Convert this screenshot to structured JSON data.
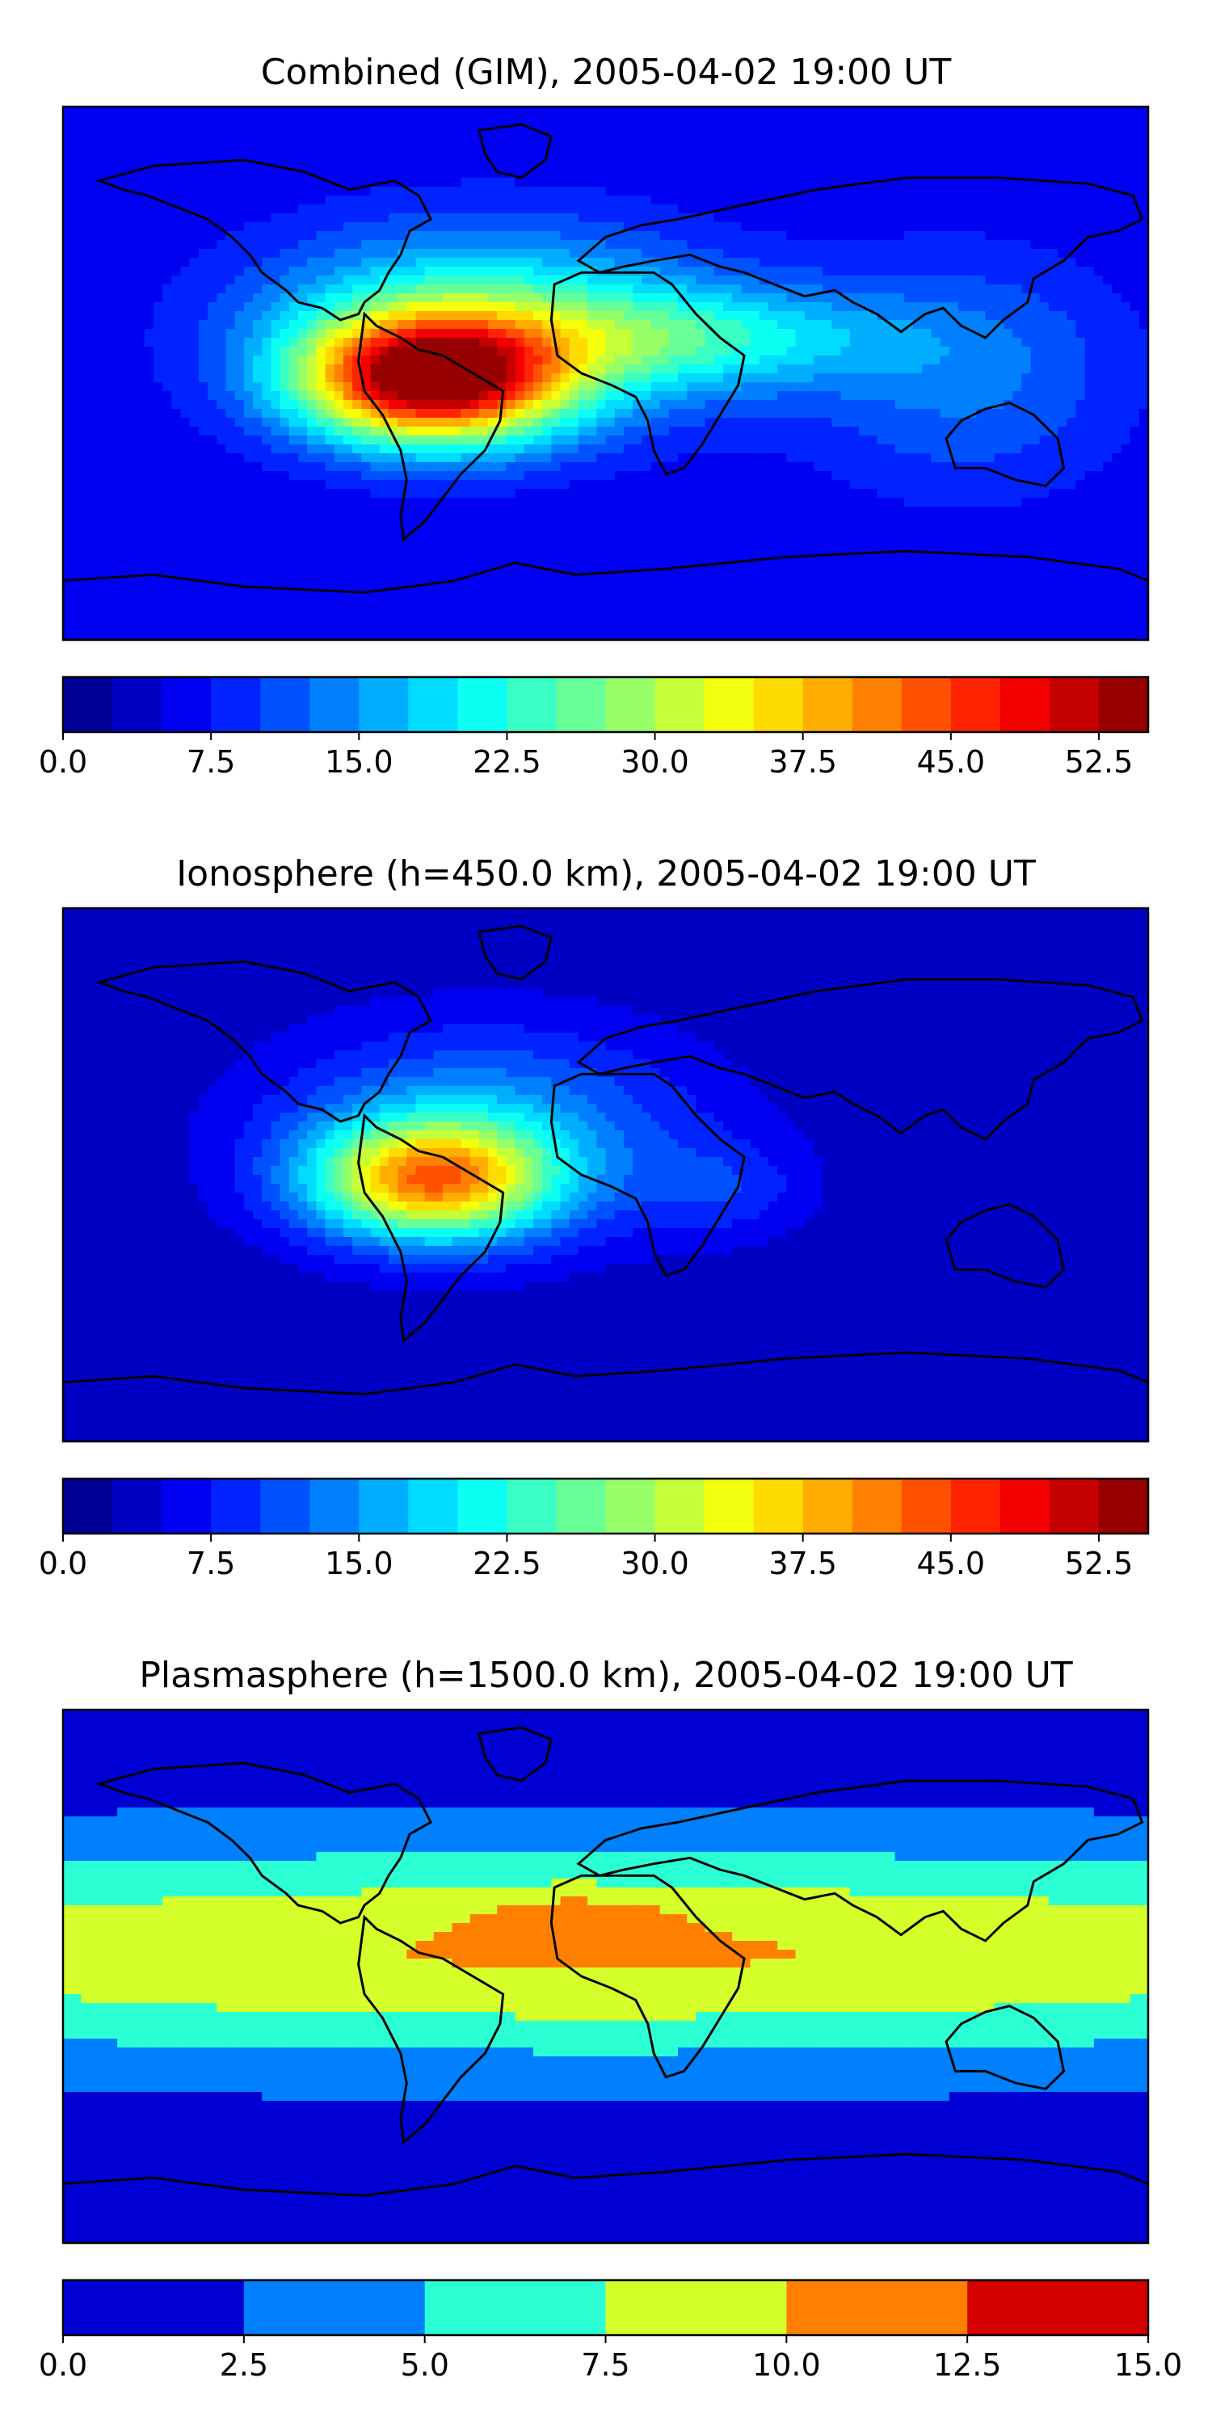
{
  "panels": [
    {
      "title": "Combined (GIM), 2005-04-02 19:00 UT",
      "field": "combined",
      "colorbar": {
        "min": 0.0,
        "max": 55.0,
        "step": 2.5,
        "ticks": [
          "0.0",
          "7.5",
          "15.0",
          "22.5",
          "30.0",
          "37.5",
          "45.0",
          "52.5"
        ],
        "tick_values": [
          0,
          7.5,
          15,
          22.5,
          30,
          37.5,
          45,
          52.5
        ]
      }
    },
    {
      "title": "Ionosphere  (h=450.0 km), 2005-04-02 19:00 UT",
      "field": "ionosphere",
      "colorbar": {
        "min": 0.0,
        "max": 55.0,
        "step": 2.5,
        "ticks": [
          "0.0",
          "7.5",
          "15.0",
          "22.5",
          "30.0",
          "37.5",
          "45.0",
          "52.5"
        ],
        "tick_values": [
          0,
          7.5,
          15,
          22.5,
          30,
          37.5,
          45,
          52.5
        ]
      }
    },
    {
      "title": "Plasmasphere (h=1500.0 km), 2005-04-02 19:00 UT",
      "field": "plasmasphere",
      "colorbar": {
        "min": 0.0,
        "max": 15.0,
        "step": 2.5,
        "ticks": [
          "0.0",
          "2.5",
          "5.0",
          "7.5",
          "10.0",
          "12.5",
          "15.0"
        ],
        "tick_values": [
          0,
          2.5,
          5,
          7.5,
          10,
          12.5,
          15
        ]
      }
    }
  ],
  "colormap": "jet",
  "map_projection": "plate-carree",
  "coastlines": true
}
